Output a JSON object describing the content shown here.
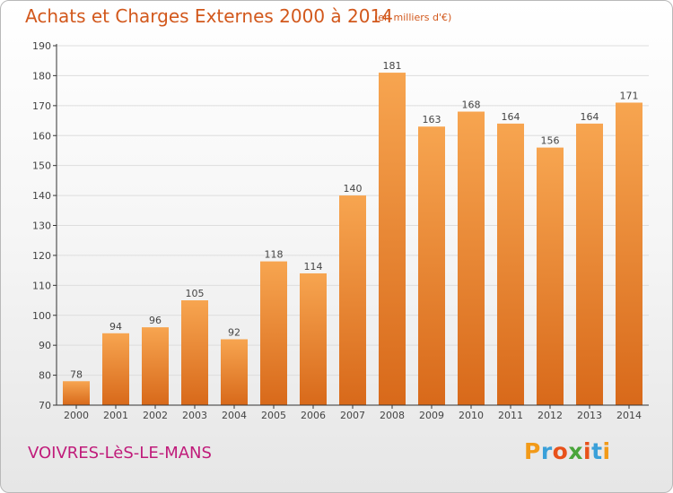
{
  "header": {
    "title": "Achats et Charges Externes 2000 à 2014",
    "subtitle": "(en milliers d'€)"
  },
  "footer": {
    "town": "VOIVRES-LèS-LE-MANS",
    "logo_letters": [
      "P",
      "r",
      "o",
      "x",
      "i",
      "t",
      "i"
    ],
    "logo_colors": [
      "#f29a18",
      "#3aa0d9",
      "#e8511a",
      "#4aa53b",
      "#e8511a",
      "#3aa0d9",
      "#f29a18"
    ]
  },
  "chart_data": {
    "type": "bar",
    "title": "Achats et Charges Externes 2000 à 2014",
    "subtitle": "(en milliers d'€)",
    "categories": [
      "2000",
      "2001",
      "2002",
      "2003",
      "2004",
      "2005",
      "2006",
      "2007",
      "2008",
      "2009",
      "2010",
      "2011",
      "2012",
      "2013",
      "2014"
    ],
    "values": [
      78,
      94,
      96,
      105,
      92,
      118,
      114,
      140,
      181,
      163,
      168,
      164,
      156,
      164,
      171
    ],
    "ylim": [
      70,
      190
    ],
    "yticks": [
      70,
      80,
      90,
      100,
      110,
      120,
      130,
      140,
      150,
      160,
      170,
      180,
      190
    ],
    "grid": true,
    "bar_color_light": "#f7a550",
    "bar_color_dark": "#d8691a",
    "axis_color": "#333333",
    "grid_color": "#dddddd"
  }
}
